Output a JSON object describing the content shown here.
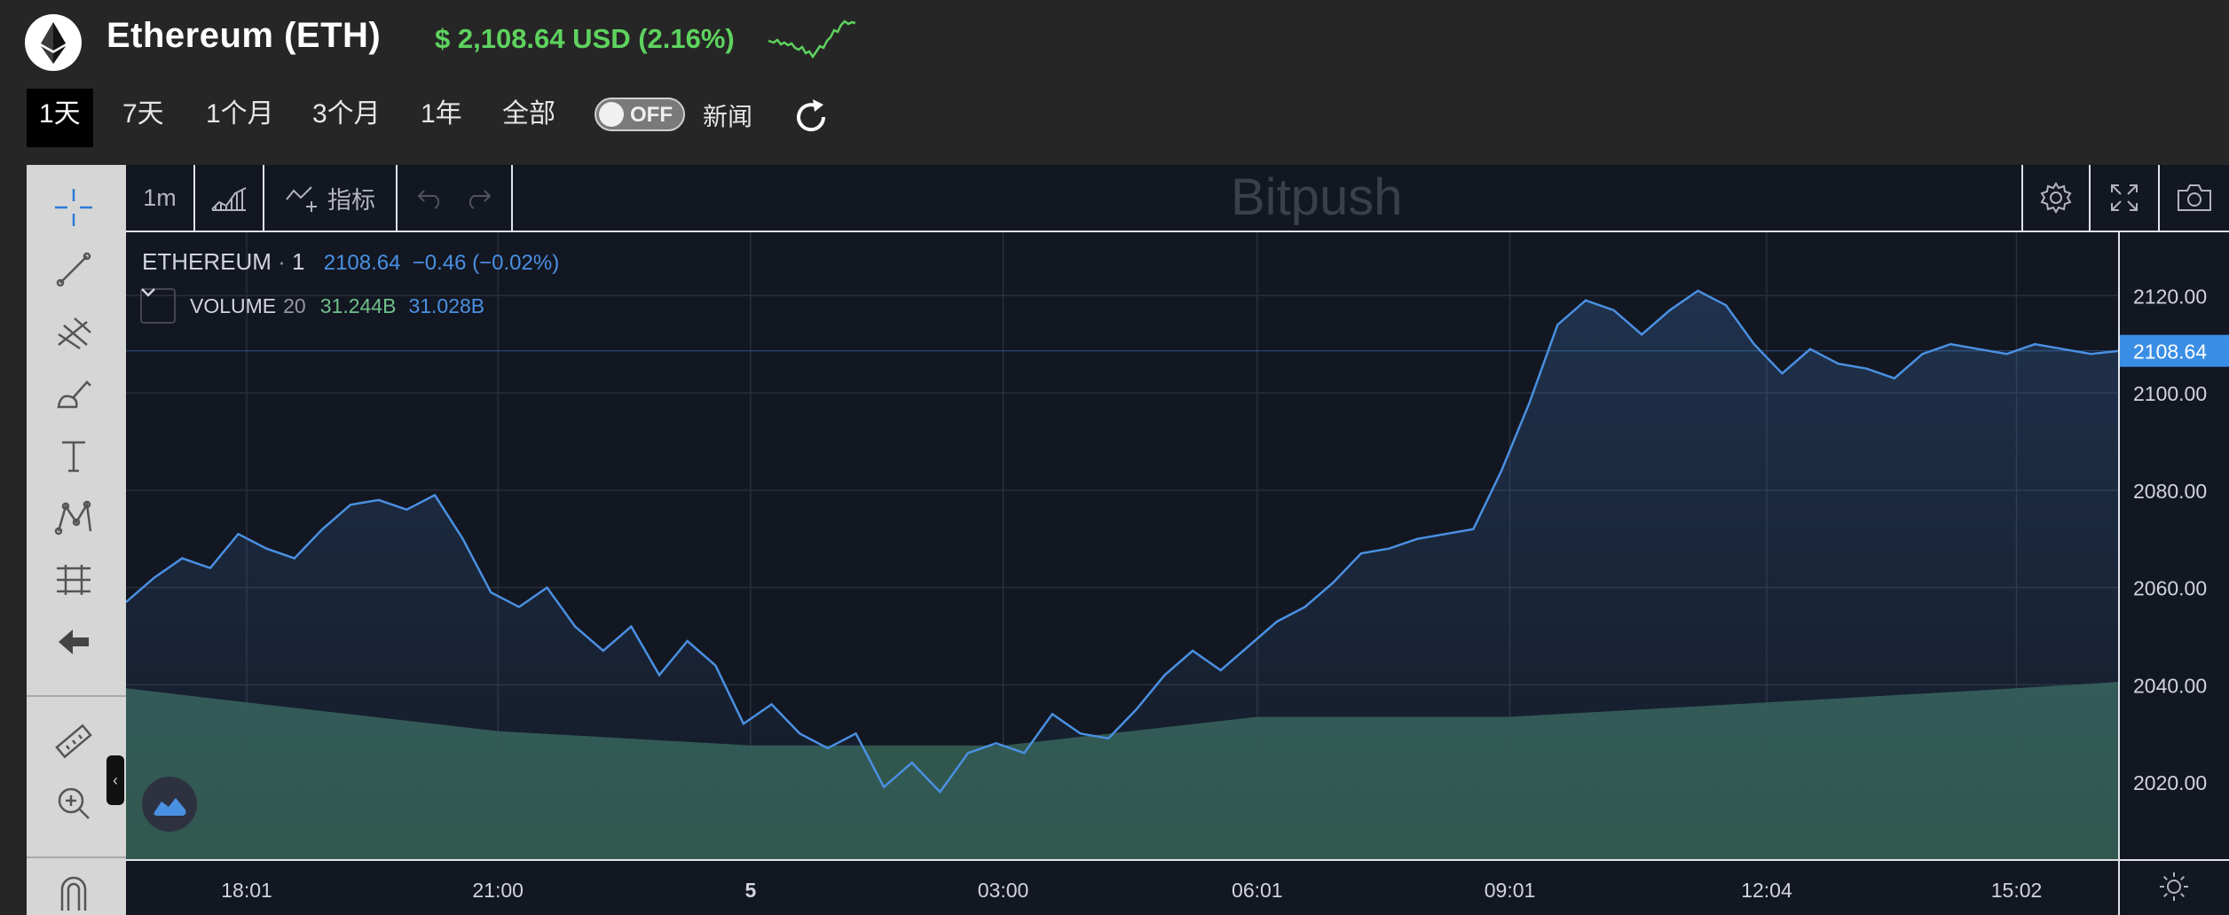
{
  "header": {
    "title": "Ethereum (ETH)",
    "price_text": "$ 2,108.64 USD (2.16%)",
    "logo_icon": "ethereum-logo-icon",
    "sparkline_icon": "sparkline-chart-icon"
  },
  "range_tabs": [
    {
      "label": "1天",
      "active": true
    },
    {
      "label": "7天",
      "active": false
    },
    {
      "label": "1个月",
      "active": false
    },
    {
      "label": "3个月",
      "active": false
    },
    {
      "label": "1年",
      "active": false
    },
    {
      "label": "全部",
      "active": false
    }
  ],
  "news_toggle": {
    "state_label": "OFF",
    "label": "新闻"
  },
  "toolbar": {
    "interval": "1m",
    "indicators": "指标",
    "brand_watermark": "Bitpush"
  },
  "legend": {
    "symbol": "ETHEREUM",
    "interval": "1",
    "price": "2108.64",
    "change": "−0.46 (−0.02%)",
    "volume_name": "VOLUME",
    "volume_period": "20",
    "volume_value": "31.244B",
    "volume_ma": "31.028B"
  },
  "colors": {
    "up_green": "#5ed35e",
    "price_line": "#4a90e2",
    "volume_fill": "#335a4f",
    "background": "#131722"
  },
  "chart_data": {
    "type": "line",
    "series": [
      {
        "name": "ETHEREUM",
        "x": [
          "16:35",
          "16:55",
          "17:15",
          "17:35",
          "17:55",
          "18:15",
          "18:35",
          "18:55",
          "19:15",
          "19:35",
          "19:55",
          "20:15",
          "20:35",
          "20:55",
          "21:15",
          "21:35",
          "21:55",
          "22:15",
          "22:35",
          "22:55",
          "23:15",
          "23:35",
          "23:55",
          "00:15",
          "00:35",
          "00:55",
          "01:15",
          "01:35",
          "01:55",
          "02:15",
          "02:35",
          "02:55",
          "03:15",
          "03:35",
          "03:55",
          "04:15",
          "04:35",
          "04:55",
          "05:15",
          "05:35",
          "05:55",
          "06:15",
          "06:35",
          "06:55",
          "07:15",
          "07:35",
          "07:55",
          "08:15",
          "08:35",
          "08:55",
          "09:15",
          "09:35",
          "09:55",
          "10:15",
          "10:35",
          "10:55",
          "11:15",
          "11:35",
          "11:55",
          "12:15",
          "12:35",
          "12:55",
          "13:15",
          "13:35",
          "13:55",
          "14:15",
          "14:35",
          "14:55",
          "15:15",
          "15:35",
          "15:55",
          "16:15"
        ],
        "values": [
          2057,
          2062,
          2066,
          2064,
          2071,
          2068,
          2066,
          2072,
          2077,
          2078,
          2076,
          2079,
          2070,
          2059,
          2056,
          2060,
          2052,
          2047,
          2052,
          2042,
          2049,
          2044,
          2032,
          2036,
          2030,
          2027,
          2030,
          2019,
          2024,
          2018,
          2026,
          2028,
          2026,
          2034,
          2030,
          2029,
          2035,
          2042,
          2047,
          2043,
          2048,
          2053,
          2056,
          2061,
          2067,
          2068,
          2070,
          2071,
          2072,
          2084,
          2098,
          2114,
          2119,
          2117,
          2112,
          2117,
          2121,
          2118,
          2110,
          2104,
          2109,
          2106,
          2105,
          2103,
          2108,
          2110,
          2109,
          2108,
          2110,
          2109,
          2108,
          2108.64
        ]
      },
      {
        "name": "VOLUME",
        "x": [
          "16:35",
          "18:01",
          "21:00",
          "00:00",
          "03:00",
          "06:01",
          "09:01",
          "12:04",
          "15:02",
          "16:15"
        ],
        "values": [
          31.2,
          31.1,
          30.9,
          30.8,
          30.8,
          31.0,
          31.0,
          31.1,
          31.2,
          31.244
        ]
      }
    ],
    "x_tick_labels": [
      "18:01",
      "21:00",
      "5",
      "03:00",
      "06:01",
      "09:01",
      "12:04",
      "15:02"
    ],
    "y_tick_labels": [
      "2020.00",
      "2040.00",
      "2060.00",
      "2080.00",
      "2100.00",
      "2120.00"
    ],
    "last_price_label": "2108.64",
    "ylim": [
      2004,
      2133
    ],
    "grid": true,
    "legend_placement": "top-left"
  }
}
